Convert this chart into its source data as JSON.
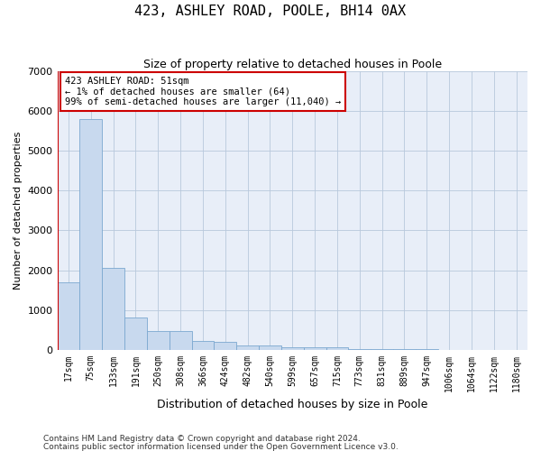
{
  "title": "423, ASHLEY ROAD, POOLE, BH14 0AX",
  "subtitle": "Size of property relative to detached houses in Poole",
  "xlabel": "Distribution of detached houses by size in Poole",
  "ylabel": "Number of detached properties",
  "bar_color": "#c8d9ee",
  "bar_edge_color": "#7ba8d0",
  "background_color": "#e8eef8",
  "annotation_text": "423 ASHLEY ROAD: 51sqm\n← 1% of detached houses are smaller (64)\n99% of semi-detached houses are larger (11,040) →",
  "annotation_box_color": "#ffffff",
  "annotation_box_edge": "#cc0000",
  "marker_line_color": "#cc0000",
  "categories": [
    "17sqm",
    "75sqm",
    "133sqm",
    "191sqm",
    "250sqm",
    "308sqm",
    "366sqm",
    "424sqm",
    "482sqm",
    "540sqm",
    "599sqm",
    "657sqm",
    "715sqm",
    "773sqm",
    "831sqm",
    "889sqm",
    "947sqm",
    "1006sqm",
    "1064sqm",
    "1122sqm",
    "1180sqm"
  ],
  "values": [
    1700,
    5800,
    2050,
    800,
    470,
    460,
    220,
    200,
    95,
    105,
    70,
    50,
    50,
    10,
    5,
    5,
    5,
    3,
    3,
    3,
    3
  ],
  "ylim": [
    0,
    7000
  ],
  "yticks": [
    0,
    1000,
    2000,
    3000,
    4000,
    5000,
    6000,
    7000
  ],
  "footnote1": "Contains HM Land Registry data © Crown copyright and database right 2024.",
  "footnote2": "Contains public sector information licensed under the Open Government Licence v3.0.",
  "grid_color": "#b8c8dc"
}
